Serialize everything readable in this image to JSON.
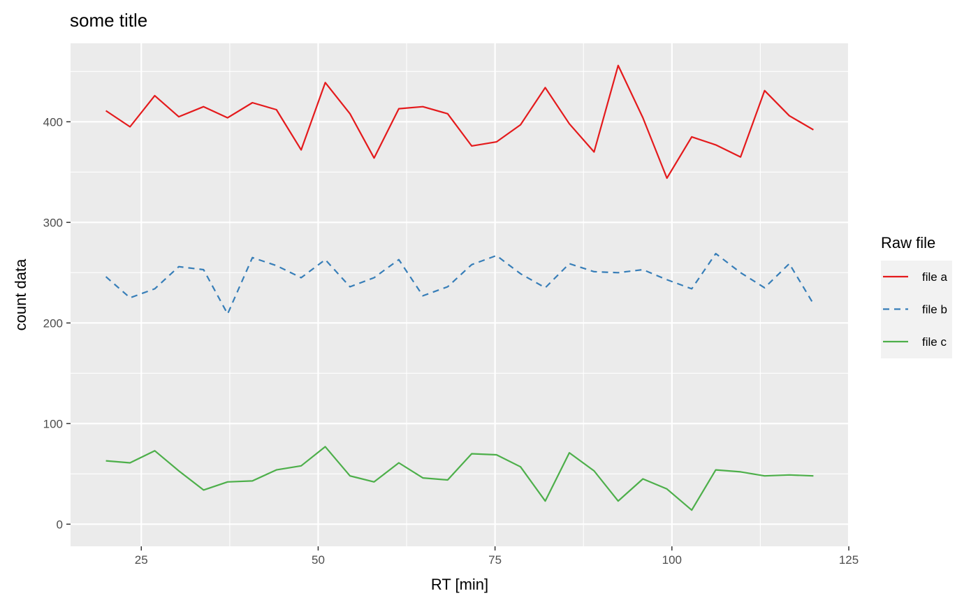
{
  "chart_data": {
    "type": "line",
    "title": "some title",
    "xlabel": "RT [min]",
    "ylabel": "count data",
    "xlim": [
      15,
      125
    ],
    "ylim": [
      -22,
      478
    ],
    "x_ticks": [
      25,
      50,
      75,
      100,
      125
    ],
    "y_ticks": [
      0,
      100,
      200,
      300,
      400
    ],
    "grid": true,
    "legend": {
      "title": "Raw file",
      "placement": "right"
    },
    "x": [
      20,
      23.4,
      26.9,
      30.3,
      33.8,
      37.2,
      40.7,
      44.1,
      47.6,
      51,
      54.5,
      57.9,
      61.4,
      64.8,
      68.3,
      71.7,
      75.2,
      78.6,
      82.1,
      85.5,
      89,
      92.4,
      95.9,
      99.3,
      102.8,
      106.2,
      109.7,
      113.1,
      116.6,
      120
    ],
    "series": [
      {
        "name": "file a",
        "color": "#E41A1C",
        "dash": "solid",
        "values": [
          411,
          395,
          426,
          405,
          415,
          404,
          419,
          412,
          372,
          439,
          408,
          364,
          413,
          415,
          408,
          376,
          380,
          397,
          434,
          398,
          370,
          456,
          404,
          344,
          385,
          377,
          365,
          431,
          406,
          392
        ]
      },
      {
        "name": "file b",
        "color": "#377EB8",
        "dash": "dashed",
        "values": [
          246,
          225,
          234,
          256,
          253,
          209,
          265,
          257,
          245,
          263,
          236,
          245,
          263,
          227,
          236,
          258,
          267,
          249,
          235,
          259,
          251,
          250,
          253,
          243,
          234,
          269,
          250,
          235,
          259,
          219
        ]
      },
      {
        "name": "file c",
        "color": "#4DAF4A",
        "dash": "solid",
        "values": [
          63,
          61,
          73,
          53,
          34,
          42,
          43,
          54,
          58,
          77,
          48,
          42,
          61,
          46,
          44,
          70,
          69,
          57,
          23,
          71,
          53,
          23,
          45,
          35,
          14,
          54,
          52,
          48,
          49,
          48
        ]
      }
    ]
  }
}
